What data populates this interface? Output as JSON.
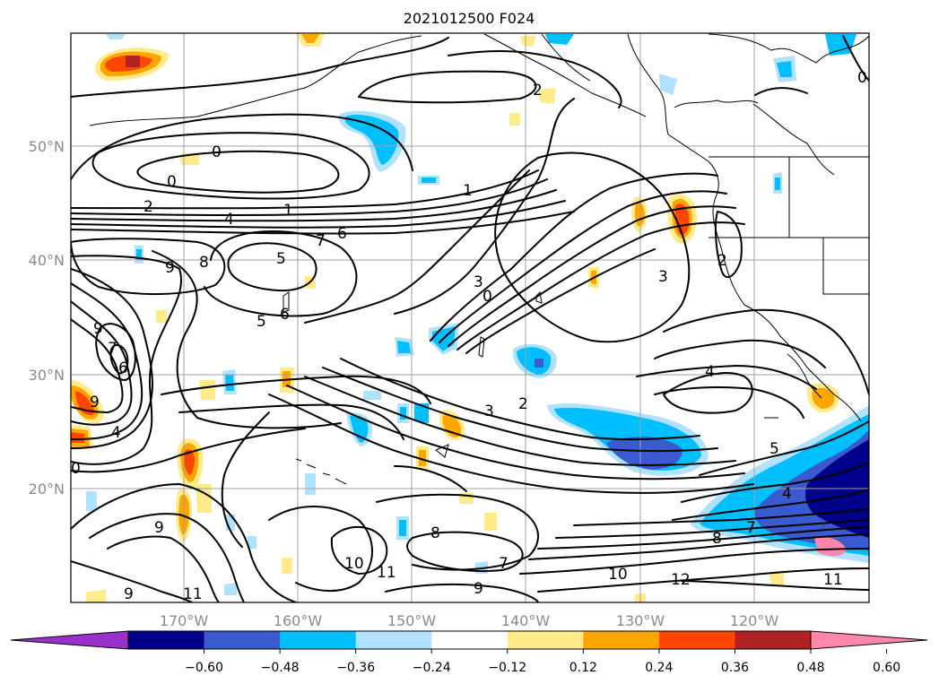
{
  "map": {
    "title": "2021012500 F024",
    "lon_labels": [
      "170°W",
      "160°W",
      "150°W",
      "140°W",
      "130°W",
      "120°W"
    ],
    "lat_labels": [
      "50°N",
      "40°N",
      "30°N",
      "20°N"
    ],
    "contour_labels": [
      "0",
      "0",
      "2",
      "4",
      "1",
      "6",
      "7",
      "9",
      "8",
      "5",
      "5",
      "6",
      "1",
      "3",
      "0",
      "2",
      "2",
      "3",
      "4",
      "9",
      "7",
      "6",
      "9",
      "4",
      "0",
      "3",
      "2",
      "5",
      "4",
      "7",
      "8",
      "9",
      "8",
      "10",
      "11",
      "11",
      "7",
      "9",
      "10",
      "12",
      "11",
      "9",
      "0"
    ]
  },
  "colorbar": {
    "tick_labels": [
      "−0.60",
      "−0.48",
      "−0.36",
      "−0.24",
      "−0.12",
      "0.12",
      "0.24",
      "0.36",
      "0.48",
      "0.60"
    ],
    "colors": [
      "#9932cc",
      "#00008b",
      "#3a5bd0",
      "#00bfff",
      "#b0e2ff",
      "#ffffff",
      "#ffeb8a",
      "#ffa500",
      "#ff4500",
      "#b22222",
      "#ff88aa"
    ]
  },
  "colors": {
    "grid": "#a0a0a0",
    "axis_label": "#8a8a8a"
  }
}
